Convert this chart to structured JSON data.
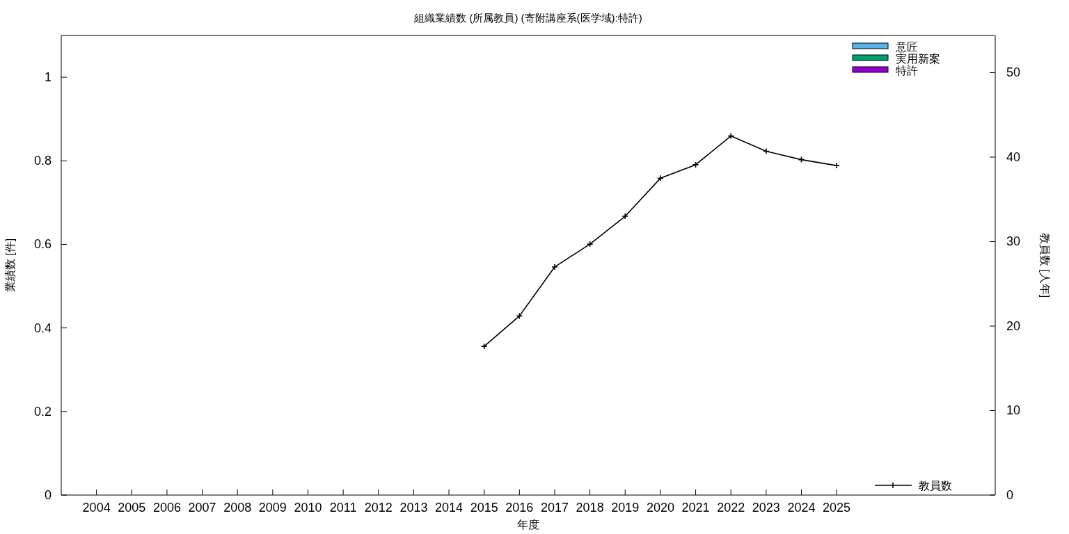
{
  "chart_data": {
    "type": "bar",
    "title": "組織業績数 (所属教員) (寄附講座系(医学域):特許)",
    "xlabel": "年度",
    "ylabel": "業績数 [件]",
    "y2label": "教員数 [人年]",
    "x": [
      2004,
      2005,
      2006,
      2007,
      2008,
      2009,
      2010,
      2011,
      2012,
      2013,
      2014,
      2015,
      2016,
      2017,
      2018,
      2019,
      2020,
      2021,
      2022,
      2023,
      2024,
      2025
    ],
    "xlim": [
      2003,
      2029.5
    ],
    "xticks": [
      2004,
      2005,
      2006,
      2007,
      2008,
      2009,
      2010,
      2011,
      2012,
      2013,
      2014,
      2015,
      2016,
      2017,
      2018,
      2019,
      2020,
      2021,
      2022,
      2023,
      2024,
      2025
    ],
    "ylim": [
      0,
      1.1
    ],
    "yticks": [
      0,
      0.2,
      0.4,
      0.6,
      0.8,
      1
    ],
    "y2lim": [
      0,
      54.4
    ],
    "y2ticks": [
      0,
      10,
      20,
      30,
      40,
      50
    ],
    "legend": "right",
    "marker": "cross",
    "series": [
      {
        "name": "意匠",
        "color": "#56b4e9",
        "values": [
          0,
          0,
          0,
          0,
          0,
          0,
          0,
          0,
          0,
          0,
          0,
          0,
          0,
          0,
          0,
          0,
          0,
          0,
          0,
          0,
          0,
          0
        ]
      },
      {
        "name": "実用新案",
        "color": "#009e73",
        "values": [
          0,
          0,
          0,
          0,
          0,
          0,
          0,
          0,
          0,
          0,
          0,
          0,
          0,
          0,
          0,
          0,
          0,
          0,
          0,
          0,
          0,
          0
        ]
      },
      {
        "name": "特許",
        "color": "#9400d3",
        "values": [
          0,
          0,
          0,
          0,
          0,
          0,
          0,
          0,
          0,
          0,
          0,
          0,
          0,
          0,
          0,
          0,
          0,
          0,
          0,
          0,
          0,
          0
        ]
      },
      {
        "name": "教員数",
        "type": "line",
        "axis": "y2",
        "color": "#000000",
        "values": [
          null,
          null,
          null,
          null,
          null,
          null,
          null,
          null,
          null,
          null,
          null,
          17.6,
          21.2,
          27.0,
          29.7,
          33.0,
          37.5,
          39.1,
          42.5,
          40.7,
          39.7,
          39.0
        ]
      }
    ]
  }
}
